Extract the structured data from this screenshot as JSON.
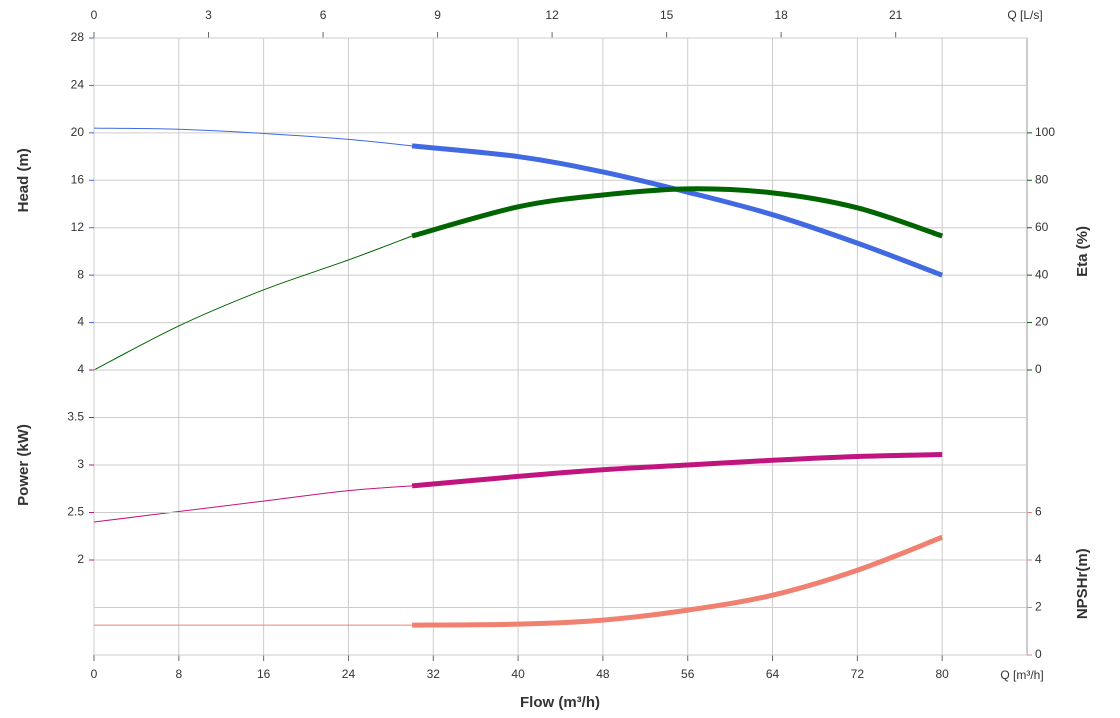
{
  "chart_data": {
    "type": "line",
    "xlabel": "Flow (m³/h)",
    "x_unit_label": "Q [m³/h]",
    "x2_unit_label": "Q [L/s]",
    "x": [
      0,
      8,
      16,
      24,
      30,
      40,
      48,
      56,
      64,
      72,
      80
    ],
    "xlim": [
      0,
      88
    ],
    "xticks": [
      0,
      8,
      16,
      24,
      32,
      40,
      48,
      56,
      64,
      72,
      80
    ],
    "x2lim": [
      0,
      24.44
    ],
    "x2ticks": [
      0,
      3,
      6,
      9,
      12,
      15,
      18,
      21
    ],
    "operating_range": [
      30,
      80
    ],
    "grid": true,
    "axes": [
      {
        "label": "Head (m)",
        "color": "#4169e1",
        "side": "left",
        "panel": "upper",
        "lim": [
          0,
          28
        ],
        "ticks": [
          4,
          8,
          12,
          16,
          20,
          24,
          28
        ],
        "grid": true,
        "values": [
          20.4,
          20.3,
          19.95,
          19.45,
          18.9,
          18.0,
          16.7,
          15.0,
          13.1,
          10.7,
          8.0
        ]
      },
      {
        "label": "Eta (%)",
        "color": "#006400",
        "side": "right",
        "panel": "upper",
        "lim": [
          0,
          140
        ],
        "ticks": [
          0,
          20,
          40,
          60,
          80,
          100
        ],
        "grid": false,
        "values": [
          0,
          18.6,
          33.8,
          46.4,
          56.5,
          68.8,
          73.8,
          76.4,
          74.7,
          68.4,
          56.5
        ]
      },
      {
        "label": "Power (kW)",
        "color": "#c0147f",
        "side": "left",
        "panel": "lower",
        "lim": [
          1,
          4
        ],
        "ticks": [
          2,
          2.5,
          3,
          3.5,
          4
        ],
        "grid": true,
        "values": [
          2.4,
          2.51,
          2.62,
          2.73,
          2.78,
          2.88,
          2.95,
          3.0,
          3.05,
          3.09,
          3.11
        ]
      },
      {
        "label": "NPSHr(m)",
        "color": "#f08070",
        "side": "right",
        "panel": "lower",
        "lim": [
          0,
          12
        ],
        "ticks": [
          0,
          2,
          4,
          6
        ],
        "grid": true,
        "values": [
          1.26,
          1.26,
          1.26,
          1.26,
          1.26,
          1.3,
          1.47,
          1.89,
          2.52,
          3.57,
          4.96
        ]
      }
    ]
  }
}
